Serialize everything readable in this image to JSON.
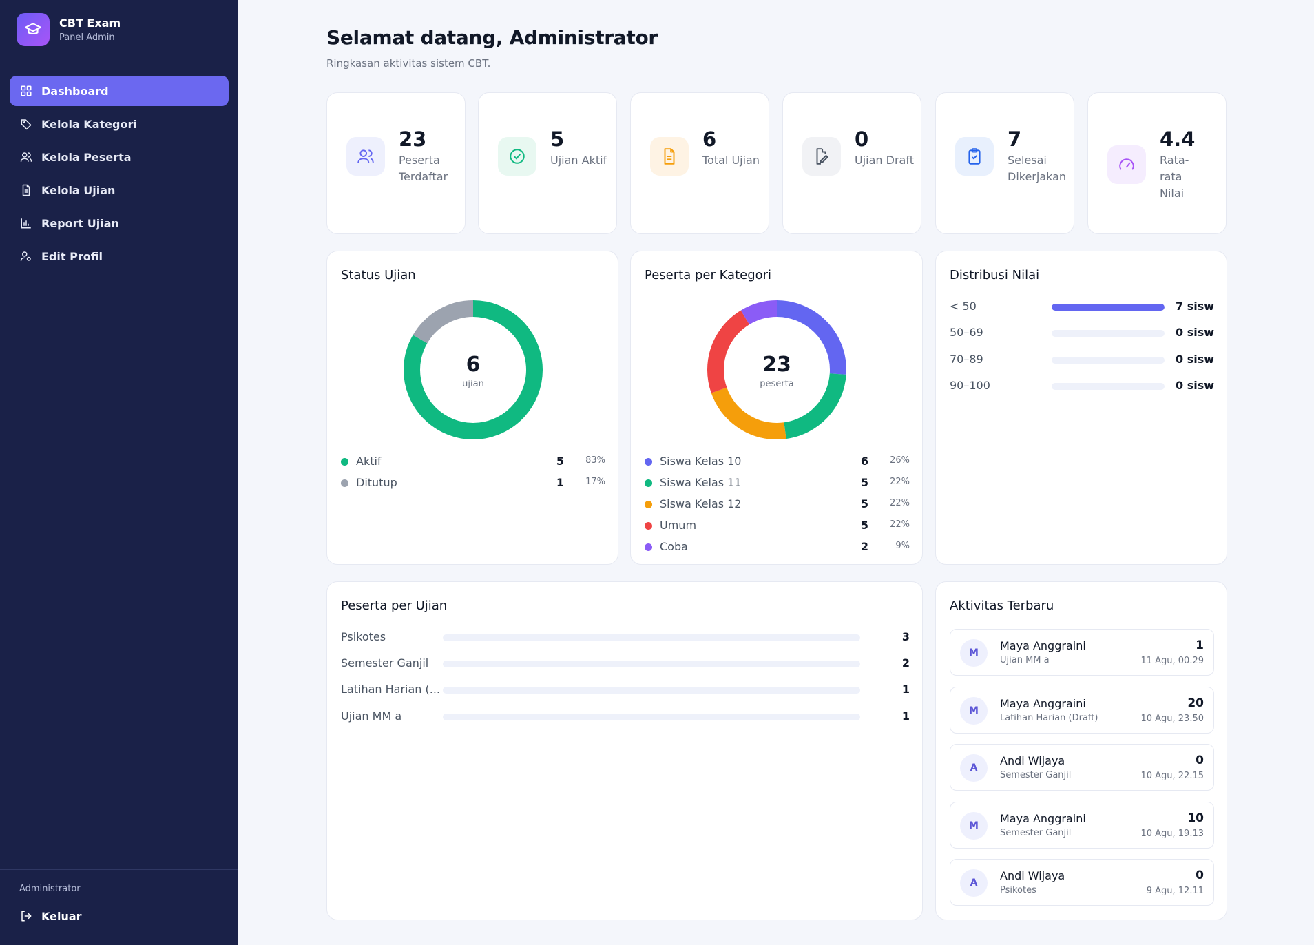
{
  "brand": {
    "title": "CBT Exam",
    "subtitle": "Panel Admin"
  },
  "nav": [
    {
      "label": "Dashboard",
      "icon": "grid-icon",
      "active": true
    },
    {
      "label": "Kelola Kategori",
      "icon": "tag-icon"
    },
    {
      "label": "Kelola Peserta",
      "icon": "users-icon"
    },
    {
      "label": "Kelola Ujian",
      "icon": "file-icon"
    },
    {
      "label": "Report Ujian",
      "icon": "bar-chart-icon"
    },
    {
      "label": "Edit Profil",
      "icon": "user-edit-icon"
    }
  ],
  "footer": {
    "role": "Administrator",
    "logout": "Keluar"
  },
  "header": {
    "title": "Selamat datang, Administrator",
    "subtitle": "Ringkasan aktivitas sistem CBT."
  },
  "stats": [
    {
      "value": "23",
      "label": "Peserta Terdaftar",
      "icon": "users-icon",
      "color": "#6366f1",
      "bg": "#eef0fd"
    },
    {
      "value": "5",
      "label": "Ujian Aktif",
      "icon": "check-circle-icon",
      "color": "#10b981",
      "bg": "#e8f8f1"
    },
    {
      "value": "6",
      "label": "Total Ujian",
      "icon": "document-icon",
      "color": "#f59e0b",
      "bg": "#fef3e4"
    },
    {
      "value": "0",
      "label": "Ujian Draft",
      "icon": "edit-document-icon",
      "color": "#4b5563",
      "bg": "#f1f2f5"
    },
    {
      "value": "7",
      "label": "Selesai Dikerjakan",
      "icon": "clipboard-check-icon",
      "color": "#2563eb",
      "bg": "#e8f0fd"
    },
    {
      "value": "4.4",
      "label": "Rata-rata Nilai",
      "icon": "gauge-icon",
      "color": "#a855f7",
      "bg": "#f5edfe"
    }
  ],
  "status_ujian": {
    "title": "Status Ujian",
    "center_value": "6",
    "center_label": "ujian",
    "items": [
      {
        "label": "Aktif",
        "count": 5,
        "pct": "83%",
        "color": "#10b981"
      },
      {
        "label": "Ditutup",
        "count": 1,
        "pct": "17%",
        "color": "#9ca3af"
      }
    ]
  },
  "peserta_kategori": {
    "title": "Peserta per Kategori",
    "center_value": "23",
    "center_label": "peserta",
    "items": [
      {
        "label": "Siswa Kelas 10",
        "count": 6,
        "pct": "26%",
        "color": "#6366f1"
      },
      {
        "label": "Siswa Kelas 11",
        "count": 5,
        "pct": "22%",
        "color": "#10b981"
      },
      {
        "label": "Siswa Kelas 12",
        "count": 5,
        "pct": "22%",
        "color": "#f59e0b"
      },
      {
        "label": "Umum",
        "count": 5,
        "pct": "22%",
        "color": "#ef4444"
      },
      {
        "label": "Coba",
        "count": 2,
        "pct": "9%",
        "color": "#8b5cf6"
      }
    ]
  },
  "distribusi": {
    "title": "Distribusi Nilai",
    "items": [
      {
        "label": "< 50",
        "count": "7 sisw",
        "fraction": 1
      },
      {
        "label": "50–69",
        "count": "0 sisw",
        "fraction": 0
      },
      {
        "label": "70–89",
        "count": "0 sisw",
        "fraction": 0
      },
      {
        "label": "90–100",
        "count": "0 sisw",
        "fraction": 0
      }
    ]
  },
  "peserta_ujian": {
    "title": "Peserta per Ujian",
    "items": [
      {
        "label": "Psikotes",
        "count": "3"
      },
      {
        "label": "Semester Ganjil",
        "count": "2"
      },
      {
        "label": "Latihan Harian (...",
        "count": "1"
      },
      {
        "label": "Ujian MM a",
        "count": "1"
      }
    ]
  },
  "aktivitas": {
    "title": "Aktivitas Terbaru",
    "items": [
      {
        "initial": "M",
        "name": "Maya Anggraini",
        "exam": "Ujian MM a",
        "score": "1",
        "time": "11 Agu, 00.29"
      },
      {
        "initial": "M",
        "name": "Maya Anggraini",
        "exam": "Latihan Harian (Draft)",
        "score": "20",
        "time": "10 Agu, 23.50"
      },
      {
        "initial": "A",
        "name": "Andi Wijaya",
        "exam": "Semester Ganjil",
        "score": "0",
        "time": "10 Agu, 22.15"
      },
      {
        "initial": "M",
        "name": "Maya Anggraini",
        "exam": "Semester Ganjil",
        "score": "10",
        "time": "10 Agu, 19.13"
      },
      {
        "initial": "A",
        "name": "Andi Wijaya",
        "exam": "Psikotes",
        "score": "0",
        "time": "9 Agu, 12.11"
      }
    ]
  }
}
